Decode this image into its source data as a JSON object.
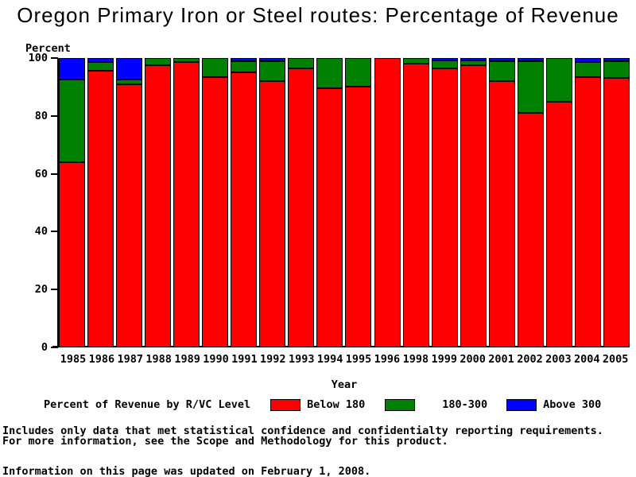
{
  "title": "Oregon Primary Iron or Steel routes: Percentage of Revenue",
  "y_axis": {
    "label": "Percent",
    "ticks": [
      0,
      20,
      40,
      60,
      80,
      100
    ]
  },
  "x_axis": {
    "label": "Year"
  },
  "legend": {
    "title": "Percent of Revenue by R/VC Level",
    "items": [
      {
        "label": "Below 180",
        "color": "#ff0000"
      },
      {
        "label": "180-300",
        "color": "#008000"
      },
      {
        "label": "Above 300",
        "color": "#0000ff"
      }
    ]
  },
  "footnotes": [
    "Includes only data that met statistical confidence and confidentialty reporting requirements.",
    "For more information, see the Scope and Methodology for this product."
  ],
  "updated_note": "Information on this page was updated on February 1, 2008.",
  "colors": {
    "red": "#ff0000",
    "green": "#008000",
    "blue": "#0000ff",
    "axis": "#000000",
    "background": "#ffffff"
  },
  "chart_data": {
    "type": "bar",
    "stacked": true,
    "title": "Oregon Primary Iron or Steel routes: Percentage of Revenue",
    "xlabel": "Year",
    "ylabel": "Percent",
    "ylim": [
      0,
      100
    ],
    "grid": false,
    "legend_position": "bottom",
    "categories": [
      "1985",
      "1986",
      "1987",
      "1988",
      "1989",
      "1990",
      "1991",
      "1992",
      "1993",
      "1994",
      "1995",
      "1996",
      "1998",
      "1999",
      "2000",
      "2001",
      "2002",
      "2003",
      "2004",
      "2005"
    ],
    "series": [
      {
        "name": "Below 180",
        "color": "#ff0000",
        "values": [
          64,
          95.5,
          91,
          97.5,
          98.5,
          93.5,
          95,
          92,
          96.5,
          89.5,
          90,
          100,
          98,
          96.5,
          97.5,
          92,
          81,
          85,
          93.5,
          93
        ]
      },
      {
        "name": "180-300",
        "color": "#008000",
        "values": [
          28.5,
          3,
          1.5,
          2.5,
          1.5,
          6.5,
          4,
          7,
          3.5,
          10.5,
          10,
          0,
          2,
          2.75,
          1.75,
          7,
          18,
          15,
          5,
          6
        ]
      },
      {
        "name": "Above 300",
        "color": "#0000ff",
        "values": [
          7.5,
          1.5,
          7.5,
          0,
          0,
          0,
          1,
          1,
          0,
          0,
          0,
          0,
          0,
          0.75,
          0.75,
          1,
          1,
          0,
          1.5,
          1
        ]
      }
    ]
  }
}
